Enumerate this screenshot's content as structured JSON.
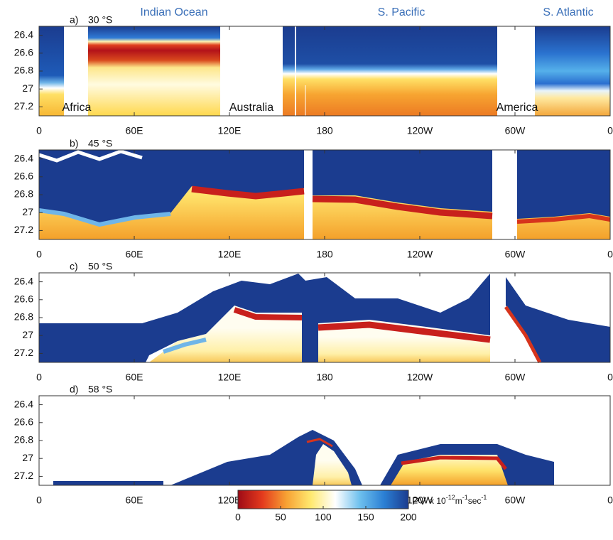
{
  "header": {
    "regions": [
      "Indian Ocean",
      "S. Pacific",
      "S. Atlantic"
    ]
  },
  "chart_data": [
    {
      "type": "contour",
      "title": "a)",
      "latitude": "30 °S",
      "annotations": [
        "Africa",
        "Australia",
        "America"
      ],
      "xlim": [
        0,
        360
      ],
      "xticks": [
        0,
        {
          "value": 60,
          "label": "60E"
        },
        {
          "value": 120,
          "label": "120E"
        },
        180,
        {
          "value": 240,
          "label": "120W"
        },
        {
          "value": 300,
          "label": "60W"
        },
        {
          "value": 360,
          "label": "0"
        }
      ],
      "ylim": [
        26.3,
        27.3
      ],
      "yticks": [
        26.4,
        26.6,
        26.8,
        27,
        27.2
      ]
    },
    {
      "type": "contour",
      "title": "b)",
      "latitude": "45 °S",
      "xlim": [
        0,
        360
      ],
      "xticks": [
        0,
        {
          "value": 60,
          "label": "60E"
        },
        {
          "value": 120,
          "label": "120E"
        },
        180,
        {
          "value": 240,
          "label": "120W"
        },
        {
          "value": 300,
          "label": "60W"
        },
        {
          "value": 360,
          "label": "0"
        }
      ],
      "ylim": [
        26.3,
        27.3
      ],
      "yticks": [
        26.4,
        26.6,
        26.8,
        27,
        27.2
      ]
    },
    {
      "type": "contour",
      "title": "c)",
      "latitude": "50 °S",
      "xlim": [
        0,
        360
      ],
      "xticks": [
        0,
        {
          "value": 60,
          "label": "60E"
        },
        {
          "value": 120,
          "label": "120E"
        },
        180,
        {
          "value": 240,
          "label": "120W"
        },
        {
          "value": 300,
          "label": "60W"
        },
        {
          "value": 360,
          "label": "0"
        }
      ],
      "ylim": [
        26.3,
        27.3
      ],
      "yticks": [
        26.4,
        26.6,
        26.8,
        27,
        27.2
      ]
    },
    {
      "type": "contour",
      "title": "d)",
      "latitude": "58 °S",
      "xlim": [
        0,
        360
      ],
      "xticks": [
        0,
        {
          "value": 60,
          "label": "60E"
        },
        {
          "value": 120,
          "label": "120E"
        },
        180,
        {
          "value": 240,
          "label": "120W"
        },
        {
          "value": 300,
          "label": "60W"
        },
        {
          "value": 360,
          "label": "0"
        }
      ],
      "ylim": [
        26.3,
        27.3
      ],
      "yticks": [
        26.4,
        26.6,
        26.8,
        27,
        27.2
      ]
    }
  ],
  "colorbar": {
    "label": "PV",
    "unit": [
      "x 10",
      "-12",
      "m",
      "-1",
      "sec",
      "-1"
    ],
    "lim": [
      0,
      200
    ],
    "ticks": [
      0,
      50,
      100,
      150,
      200
    ],
    "colormap": [
      "#9e0b16",
      "#e43a1d",
      "#f7a234",
      "#ffe970",
      "#ffffff",
      "#6ec0ee",
      "#2b7fd4",
      "#1b3c8f"
    ]
  }
}
